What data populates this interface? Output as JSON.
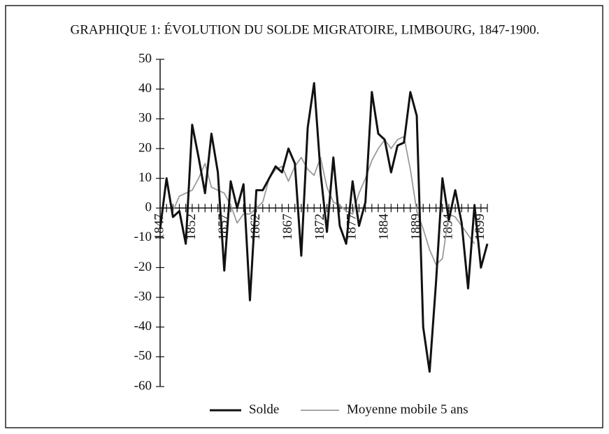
{
  "chart_data": {
    "type": "line",
    "title": "GRAPHIQUE 1: ÉVOLUTION DU SOLDE MIGRATOIRE, LIMBOURG, 1847-1900.",
    "categories": [
      "1847",
      null,
      null,
      null,
      null,
      "1852",
      null,
      null,
      null,
      null,
      "1857",
      null,
      null,
      null,
      null,
      "1862",
      null,
      null,
      null,
      null,
      "1867",
      null,
      null,
      null,
      null,
      "1872",
      null,
      null,
      null,
      null,
      "1877",
      null,
      null,
      null,
      null,
      "1884",
      null,
      null,
      null,
      null,
      "1889",
      null,
      null,
      null,
      null,
      "1894",
      null,
      null,
      null,
      null,
      "1899",
      null
    ],
    "series": [
      {
        "name": "Solde",
        "color": "#111111",
        "values": [
          -7,
          10,
          -3,
          -1,
          -12,
          28,
          17,
          5,
          25,
          12,
          -21,
          9,
          0,
          8,
          -31,
          6,
          6,
          10,
          14,
          12,
          20,
          15,
          -16,
          27,
          42,
          12,
          -8,
          17,
          -6,
          -12,
          9,
          -6,
          2,
          39,
          25,
          23,
          12,
          21,
          22,
          39,
          31,
          -40,
          -55,
          -25,
          10,
          -4,
          6,
          -5,
          -27,
          1,
          -20,
          -12
        ]
      },
      {
        "name": "Moyenne mobile 5 ans",
        "color": "#9a9a9a",
        "values": [
          null,
          null,
          -1,
          4,
          5,
          6,
          10,
          15,
          7,
          6,
          5,
          1,
          -5,
          -2,
          -2,
          0,
          2,
          10,
          13,
          14,
          9,
          14,
          17,
          13,
          11,
          17,
          7,
          2,
          1,
          -1,
          -2,
          5,
          10,
          16,
          20,
          23,
          20,
          23,
          24,
          13,
          -1,
          -7,
          -14,
          -19,
          -17,
          -2,
          -3,
          -6,
          -9,
          -12,
          null,
          null
        ]
      }
    ],
    "ylim": [
      -60,
      50
    ],
    "yticks": [
      -60,
      -50,
      -40,
      -30,
      -20,
      -10,
      0,
      10,
      20,
      30,
      40,
      50
    ],
    "legend": "bottom"
  }
}
